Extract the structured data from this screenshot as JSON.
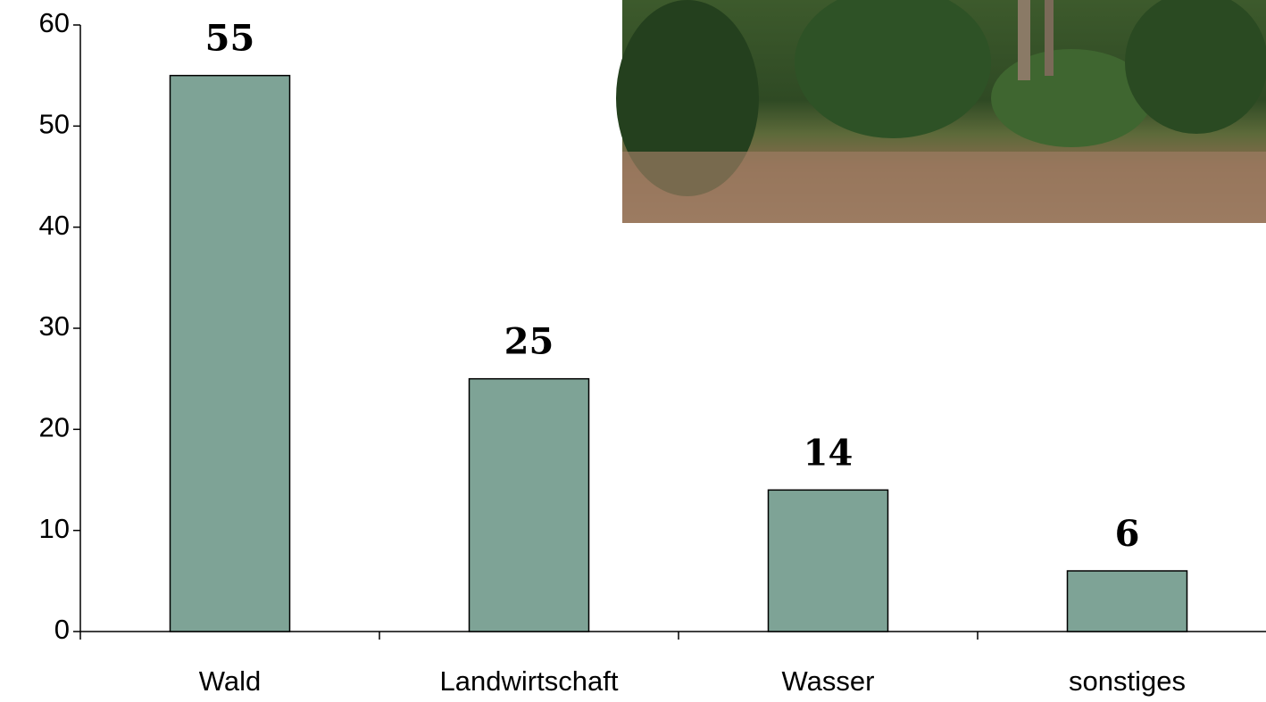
{
  "chart_data": {
    "type": "bar",
    "categories": [
      "Wald",
      "Landwirtschaft",
      "Wasser",
      "sonstiges"
    ],
    "values": [
      55,
      25,
      14,
      6
    ],
    "color": "#7ea396",
    "ylim": [
      0,
      60
    ],
    "yticks": [
      0,
      10,
      20,
      30,
      40,
      50,
      60
    ],
    "grid": false
  }
}
